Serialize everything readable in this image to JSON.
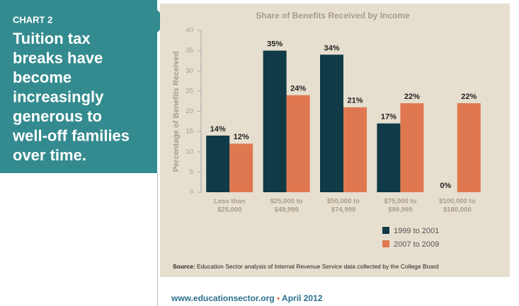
{
  "panel": {
    "label": "CHART 2",
    "headline_lines": [
      "Tuition tax",
      "breaks have",
      "become",
      "increasingly",
      "generous to",
      "well-off families",
      "over time."
    ]
  },
  "chart_data": {
    "type": "bar",
    "title": "Share of Benefits Received by Income",
    "y_label": "Percentage of Benefits Received",
    "categories": [
      [
        "Less than",
        "$25,000"
      ],
      [
        "$25,000 to",
        "$49,999"
      ],
      [
        "$50,000 to",
        "$74,999"
      ],
      [
        "$75,000 to",
        "$99,999"
      ],
      [
        "$100,000 to",
        "$180,000"
      ]
    ],
    "series": [
      {
        "name": "1999 to 2001",
        "color": "#0f3a46",
        "values": [
          14,
          35,
          34,
          17,
          0
        ],
        "value_labels": [
          "14%",
          "35%",
          "34%",
          "17%",
          "0%"
        ]
      },
      {
        "name": "2007 to 2009",
        "color": "#df7850",
        "values": [
          12,
          24,
          21,
          22,
          22
        ],
        "value_labels": [
          "12%",
          "24%",
          "21%",
          "22%",
          "22%"
        ]
      }
    ],
    "ylim": [
      0,
      40
    ],
    "yticks": [
      0,
      5,
      10,
      15,
      20,
      25,
      30,
      35,
      40
    ],
    "grid": false
  },
  "source_label": "Source:",
  "source": "Education Sector analysis of Internal Revenue Service data collected by the College Board",
  "footer": {
    "url": "www.educationsector.org",
    "date": "April 2012"
  }
}
